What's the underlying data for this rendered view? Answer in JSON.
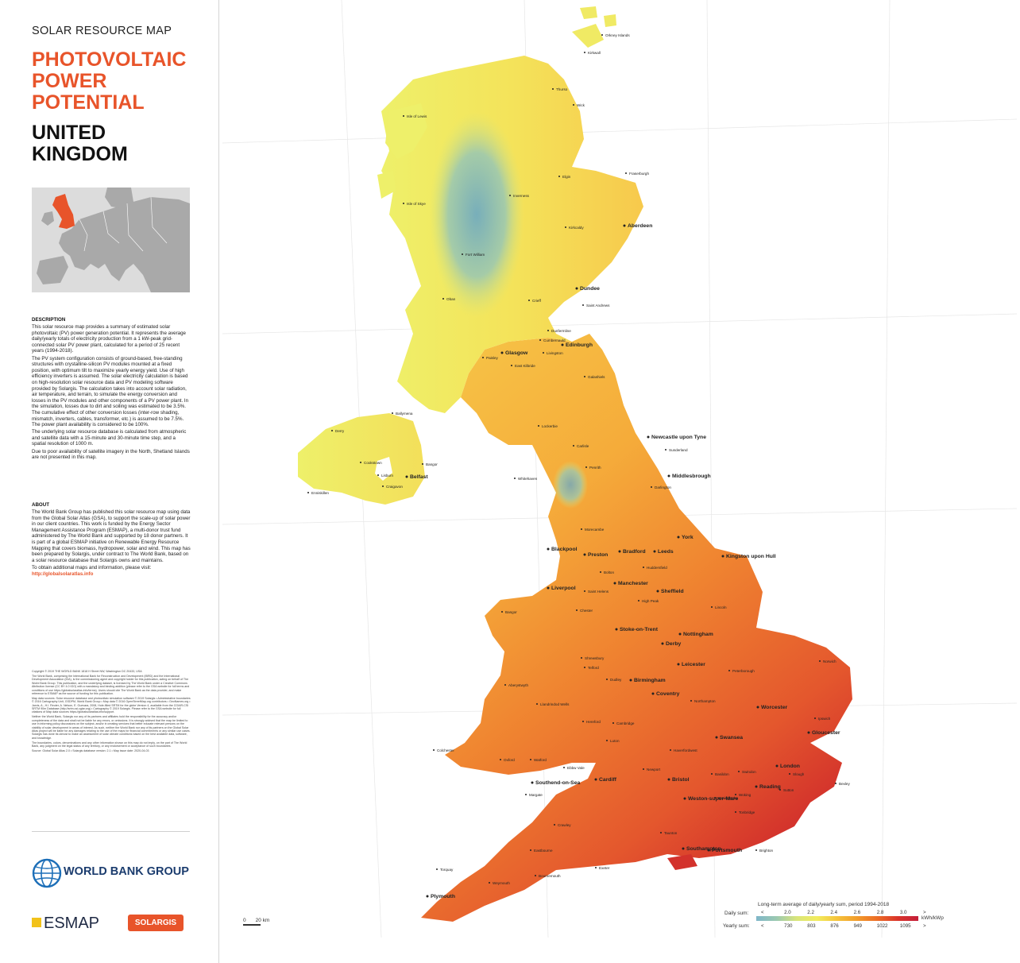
{
  "header": {
    "eyebrow": "SOLAR RESOURCE MAP",
    "title_line1": "PHOTOVOLTAIC",
    "title_line2": "POWER",
    "title_line3": "POTENTIAL",
    "country_line1": "UNITED",
    "country_line2": "KINGDOM"
  },
  "description": {
    "heading": "DESCRIPTION",
    "paragraphs": [
      "This solar resource map provides a summary of estimated solar photovoltaic (PV) power generation potential. It represents the average daily/yearly totals of electricity production from a 1 kW-peak grid-connected solar PV power plant, calculated for a period of 25 recent years (1994-2018).",
      "The PV system configuration consists of ground-based, free-standing structures with crystalline-silicon PV modules mounted at a fixed position, with optimum tilt to maximize yearly energy yield. Use of high efficiency inverters is assumed. The solar electricity calculation is based on high-resolution solar resource data and PV modeling software provided by Solargis. The calculation takes into account solar radiation, air temperature, and terrain, to simulate the energy conversion and losses in the PV modules and other components of a PV power plant. In the simulation, losses due to dirt and soiling was estimated to be 3.5%. The cumulative effect of other conversion losses (inter-row shading, mismatch, inverters, cables, transformer, etc.) is assumed to be 7.5%. The power plant availability is considered to be 100%.",
      "The underlying solar resource database is calculated from atmospheric and satellite data with a 15-minute and 30-minute time step, and a spatial resolution of 1000 m.",
      "Due to poor availability of satellite imagery in the North, Shetland Islands are not presented in this map."
    ]
  },
  "about": {
    "heading": "ABOUT",
    "paragraph": "The World Bank Group has published this solar resource map using data from the Global Solar Atlas (GSA), to support the scale-up of solar power in our client countries. This work is funded by the Energy Sector Management Assistance Program (ESMAP), a multi-donor trust fund administered by The World Bank and supported by 18 donor partners. It is part of a global ESMAP initiative on Renewable Energy Resource Mapping that covers biomass, hydropower, solar and wind. This map has been prepared by Solargis, under contract to The World Bank, based on a solar resource database that Solargis owns and maintains.",
    "visit_text": "To obtain additional maps and information, please visit:",
    "link": "http://globalsolaratlas.info"
  },
  "copyright": {
    "paragraphs": [
      "Copyright © 2019 THE WORLD BANK 1818 H Street NW, Washington DC 20433, USA",
      "The World Bank, comprising the International Bank for Reconstruction and Development (IBRD) and the International Development Association (IDA), is the commissioning agent and copyright holder for this publication, acting on behalf of The World Bank Group. This publication, and the underlying dataset, is licensed by The World Bank under a Creative Commons Attribution license (CC BY 4.0 IGO) with a mandatory and binding addition (please refer to the GSA website for full terms and conditions of use https://globalsolaratlas.info/terms). Users should cite The World Bank as the data provider, and make reference to ESMAP as the source of funding for this publication.",
      "Map data sources: Solar resource database and photovoltaic simulation software © 2019 Solargis • Administrative boundaries © 2016 Cartography Unit, GSDPM, World Bank Group • Map data © 2016 OpenStreetMap.org contributors • GeoNames.org • Jarvis, A., H.I. Reuter, A. Nelson, E. Guevara, 2008, Hole-filled SRTM for the globe Version 4, available from the CGIAR-CSI SRTM 90m Database (http://srtm.csi.cgiar.org) • Cartography © 2019 Solargis. Please refer to the GSA website for full citations of Map data sources https://globalsolaratlas.info/support.",
      "Neither the World Bank, Solargis nor any of its partners and affiliates hold the responsibility for the accuracy and/or completeness of the data and shall not be liable for any errors, or omissions. It is strongly advised that the map be limited to use in informing policy discussions on the subject, and/or in creating services that better educate relevant persons on the viability of solar development in areas of interest. As such, neither the World Bank nor any of its partners on the Global Solar Atlas project will be liable for any damages relating to the use of the maps for financial commitments or any similar use cases. Solargis has done its utmost to make an assessment of solar climate conditions based on the best available data, software, and knowledge.",
      "The boundaries, colors, denominations and any other information shown on this map do not imply, on the part of The World Bank, any judgment on the legal status of any territory, or any endorsement or acceptance of such boundaries.",
      "Source: Global Solar Atlas 2.0 • Solargis database version: 2.1 • Map issue date: 2020-04-03"
    ]
  },
  "logos": {
    "world_bank": "WORLD BANK GROUP",
    "esmap": "ESMAP",
    "solargis": "SOLARGIS"
  },
  "legend": {
    "title": "Long-term average of daily/yearly sum, period 1994-2018",
    "daily_label": "Daily sum:",
    "yearly_label": "Yearly sum:",
    "daily_ticks": [
      "<",
      "2.0",
      "2.2",
      "2.4",
      "2.6",
      "2.8",
      "3.0",
      ">"
    ],
    "yearly_ticks": [
      "<",
      "730",
      "803",
      "876",
      "949",
      "1022",
      "1095",
      ">"
    ],
    "unit": "kWh/kWp",
    "colors": [
      "#7fb6c9",
      "#9bc9b0",
      "#d9e57a",
      "#f2ec5e",
      "#f5c33b",
      "#f29b2a",
      "#ec6b26",
      "#d9332a",
      "#c41e3a"
    ]
  },
  "scale": {
    "zero": "0",
    "distance": "20 km"
  },
  "map": {
    "labels": [
      {
        "name": "Orkney Islands",
        "big": false
      },
      {
        "name": "Kirkwall",
        "big": false
      },
      {
        "name": "Thurso",
        "big": false
      },
      {
        "name": "Wick",
        "big": false
      },
      {
        "name": "Isle of Lewis",
        "big": false
      },
      {
        "name": "Elgin",
        "big": false
      },
      {
        "name": "Fraserburgh",
        "big": false
      },
      {
        "name": "Inverness",
        "big": false
      },
      {
        "name": "Isle of Skye",
        "big": false
      },
      {
        "name": "Kirkcaldy",
        "big": false
      },
      {
        "name": "Aberdeen",
        "big": true
      },
      {
        "name": "Fort William",
        "big": false
      },
      {
        "name": "Dundee",
        "big": true
      },
      {
        "name": "Oban",
        "big": false
      },
      {
        "name": "Crieff",
        "big": false
      },
      {
        "name": "Saint Andrews",
        "big": false
      },
      {
        "name": "Dunfermline",
        "big": false
      },
      {
        "name": "Cumbernauld",
        "big": false
      },
      {
        "name": "Edinburgh",
        "big": true
      },
      {
        "name": "Glasgow",
        "big": true
      },
      {
        "name": "Livingston",
        "big": false
      },
      {
        "name": "Paisley",
        "big": false
      },
      {
        "name": "East Kilbride",
        "big": false
      },
      {
        "name": "Galashiels",
        "big": false
      },
      {
        "name": "Ballymena",
        "big": false
      },
      {
        "name": "Derry",
        "big": false
      },
      {
        "name": "Lockerbie",
        "big": false
      },
      {
        "name": "Carlisle",
        "big": false
      },
      {
        "name": "Newcastle upon Tyne",
        "big": true
      },
      {
        "name": "Sunderland",
        "big": false
      },
      {
        "name": "Cookstown",
        "big": false
      },
      {
        "name": "Bangor",
        "big": false
      },
      {
        "name": "Lisburn",
        "big": false
      },
      {
        "name": "Belfast",
        "big": true
      },
      {
        "name": "Craigavon",
        "big": false
      },
      {
        "name": "Enniskillen",
        "big": false
      },
      {
        "name": "Penrith",
        "big": false
      },
      {
        "name": "Whitehaven",
        "big": false
      },
      {
        "name": "Middlesbrough",
        "big": true
      },
      {
        "name": "Darlington",
        "big": false
      },
      {
        "name": "Morecambe",
        "big": false
      },
      {
        "name": "York",
        "big": true
      },
      {
        "name": "Blackpool",
        "big": true
      },
      {
        "name": "Preston",
        "big": true
      },
      {
        "name": "Bradford",
        "big": true
      },
      {
        "name": "Leeds",
        "big": true
      },
      {
        "name": "Kingston upon Hull",
        "big": true
      },
      {
        "name": "Bolton",
        "big": false
      },
      {
        "name": "Huddersfield",
        "big": false
      },
      {
        "name": "Manchester",
        "big": true
      },
      {
        "name": "Liverpool",
        "big": true
      },
      {
        "name": "Saint Helens",
        "big": false
      },
      {
        "name": "Sheffield",
        "big": true
      },
      {
        "name": "High Peak",
        "big": false
      },
      {
        "name": "Lincoln",
        "big": false
      },
      {
        "name": "Bangor",
        "big": false
      },
      {
        "name": "Chester",
        "big": false
      },
      {
        "name": "Stoke-on-Trent",
        "big": true
      },
      {
        "name": "Nottingham",
        "big": true
      },
      {
        "name": "Derby",
        "big": true
      },
      {
        "name": "Norwich",
        "big": false
      },
      {
        "name": "Shrewsbury",
        "big": false
      },
      {
        "name": "Telford",
        "big": false
      },
      {
        "name": "Leicester",
        "big": true
      },
      {
        "name": "Peterborough",
        "big": false
      },
      {
        "name": "Dudley",
        "big": false
      },
      {
        "name": "Birmingham",
        "big": true
      },
      {
        "name": "Aberystwyth",
        "big": false
      },
      {
        "name": "Coventry",
        "big": true
      },
      {
        "name": "Northampton",
        "big": false
      },
      {
        "name": "Llandrindod Wells",
        "big": false
      },
      {
        "name": "Worcester",
        "big": true
      },
      {
        "name": "Cambridge",
        "big": false
      },
      {
        "name": "Hereford",
        "big": false
      },
      {
        "name": "Ipswich",
        "big": false
      },
      {
        "name": "Luton",
        "big": false
      },
      {
        "name": "Gloucester",
        "big": true
      },
      {
        "name": "Colchester",
        "big": false
      },
      {
        "name": "Haverfordwest",
        "big": false
      },
      {
        "name": "Oxford",
        "big": false
      },
      {
        "name": "Swansea",
        "big": true
      },
      {
        "name": "Watford",
        "big": false
      },
      {
        "name": "Ebbw Vale",
        "big": false
      },
      {
        "name": "Newport",
        "big": false
      },
      {
        "name": "Swindon",
        "big": false
      },
      {
        "name": "London",
        "big": true
      },
      {
        "name": "Basildon",
        "big": false
      },
      {
        "name": "Slough",
        "big": false
      },
      {
        "name": "Southend-on-Sea",
        "big": true
      },
      {
        "name": "Cardiff",
        "big": true
      },
      {
        "name": "Bristol",
        "big": true
      },
      {
        "name": "Reading",
        "big": true
      },
      {
        "name": "Bexley",
        "big": false
      },
      {
        "name": "Margate",
        "big": false
      },
      {
        "name": "Weston-super-Mare",
        "big": true
      },
      {
        "name": "Basingstoke",
        "big": false
      },
      {
        "name": "Woking",
        "big": false
      },
      {
        "name": "Sutton",
        "big": false
      },
      {
        "name": "Tonbridge",
        "big": false
      },
      {
        "name": "Crawley",
        "big": false
      },
      {
        "name": "Taunton",
        "big": false
      },
      {
        "name": "Southampton",
        "big": true
      },
      {
        "name": "Portsmouth",
        "big": true
      },
      {
        "name": "Brighton",
        "big": false
      },
      {
        "name": "Eastbourne",
        "big": false
      },
      {
        "name": "Exeter",
        "big": false
      },
      {
        "name": "Bournemouth",
        "big": false
      },
      {
        "name": "Weymouth",
        "big": false
      },
      {
        "name": "Torquay",
        "big": false
      },
      {
        "name": "Plymouth",
        "big": true
      },
      {
        "name": "Newquay",
        "big": false
      },
      {
        "name": "Camborne",
        "big": false
      }
    ]
  }
}
